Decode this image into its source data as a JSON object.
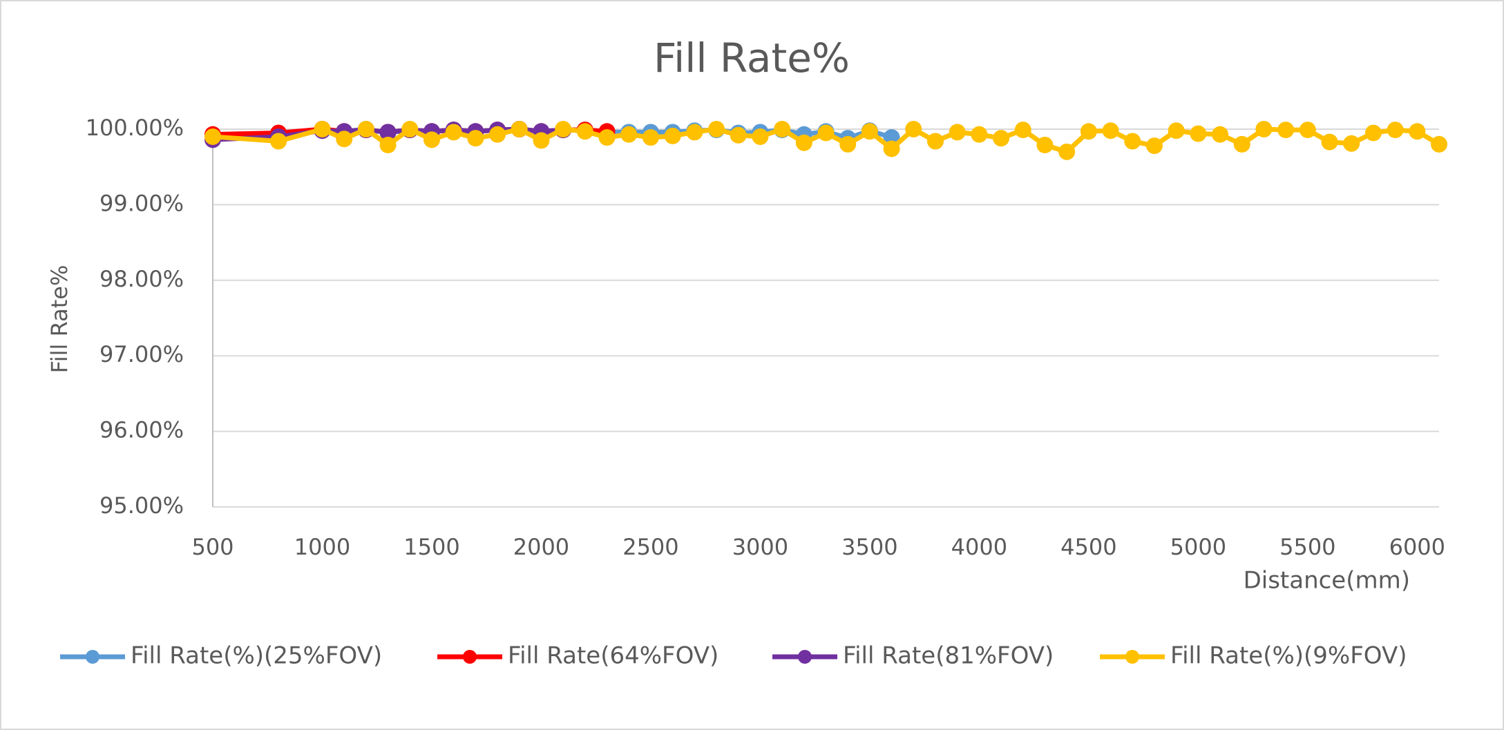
{
  "chart_data": {
    "type": "line",
    "title": "Fill Rate%",
    "y_label": "Fill Rate%",
    "x_label": "Distance(mm)",
    "xlim": [
      500,
      6100
    ],
    "xticks": [
      500,
      1000,
      1500,
      2000,
      2500,
      3000,
      3500,
      4000,
      4500,
      5000,
      5500,
      6000
    ],
    "ylim": [
      95,
      100
    ],
    "yticks": [
      {
        "value": 95,
        "label": "95.00%"
      },
      {
        "value": 96,
        "label": "96.00%"
      },
      {
        "value": 97,
        "label": "97.00%"
      },
      {
        "value": 98,
        "label": "98.00%"
      },
      {
        "value": 99,
        "label": "99.00%"
      },
      {
        "value": 100,
        "label": "100.00%"
      }
    ],
    "grid": true,
    "legend": "bottom",
    "series": [
      {
        "name": "Fill Rate(%)(25%FOV)",
        "color": "#5b9bd5",
        "x": [
          500,
          800,
          1000,
          1100,
          1200,
          1300,
          1400,
          1500,
          1600,
          1700,
          1800,
          1900,
          2000,
          2100,
          2200,
          2300,
          2400,
          2500,
          2600,
          2700,
          2800,
          2900,
          3000,
          3100,
          3200,
          3300,
          3400,
          3500,
          3600
        ],
        "values": [
          99.92,
          99.93,
          99.99,
          99.97,
          100,
          99.95,
          99.99,
          99.97,
          99.99,
          99.97,
          99.99,
          100,
          99.97,
          99.99,
          99.99,
          99.96,
          99.96,
          99.96,
          99.96,
          99.98,
          99.99,
          99.95,
          99.96,
          99.99,
          99.93,
          99.97,
          99.88,
          99.98,
          99.89
        ]
      },
      {
        "name": "Fill Rate(64%FOV)",
        "color": "#ff0000",
        "x": [
          500,
          800,
          1000,
          1100,
          1200,
          1300,
          1400,
          1500,
          1600,
          1700,
          1800,
          1900,
          2000,
          2100,
          2200,
          2300
        ],
        "values": [
          99.93,
          99.95,
          100,
          99.97,
          99.99,
          99.96,
          99.99,
          99.97,
          99.99,
          99.97,
          99.99,
          100,
          99.97,
          99.99,
          99.99,
          99.97
        ]
      },
      {
        "name": "Fill Rate(81%FOV)",
        "color": "#7030a0",
        "x": [
          500,
          800,
          1000,
          1100,
          1200,
          1300,
          1400,
          1500,
          1600,
          1700,
          1800,
          1900,
          2000,
          2100
        ],
        "values": [
          99.86,
          99.9,
          99.98,
          99.97,
          99.99,
          99.96,
          99.99,
          99.97,
          99.99,
          99.97,
          99.99,
          100,
          99.97,
          99.99
        ]
      },
      {
        "name": "Fill Rate(%)(9%FOV)",
        "color": "#ffc000",
        "x": [
          500,
          800,
          1000,
          1100,
          1200,
          1300,
          1400,
          1500,
          1600,
          1700,
          1800,
          1900,
          2000,
          2100,
          2200,
          2300,
          2400,
          2500,
          2600,
          2700,
          2800,
          2900,
          3000,
          3100,
          3200,
          3300,
          3400,
          3500,
          3600,
          3700,
          3800,
          3900,
          4000,
          4100,
          4200,
          4300,
          4400,
          4500,
          4600,
          4700,
          4800,
          4900,
          5000,
          5100,
          5200,
          5300,
          5400,
          5500,
          5600,
          5700,
          5800,
          5900,
          6000,
          6100
        ],
        "values": [
          99.9,
          99.84,
          100,
          99.87,
          100,
          99.79,
          100,
          99.86,
          99.96,
          99.88,
          99.93,
          100,
          99.85,
          100,
          99.97,
          99.89,
          99.93,
          99.89,
          99.91,
          99.96,
          100,
          99.92,
          99.9,
          100,
          99.82,
          99.95,
          99.8,
          99.97,
          99.74,
          100,
          99.84,
          99.96,
          99.93,
          99.88,
          99.99,
          99.79,
          99.7,
          99.97,
          99.98,
          99.84,
          99.78,
          99.98,
          99.94,
          99.93,
          99.8,
          100,
          99.99,
          99.99,
          99.83,
          99.81,
          99.95,
          99.99,
          99.97,
          99.8
        ]
      }
    ]
  }
}
